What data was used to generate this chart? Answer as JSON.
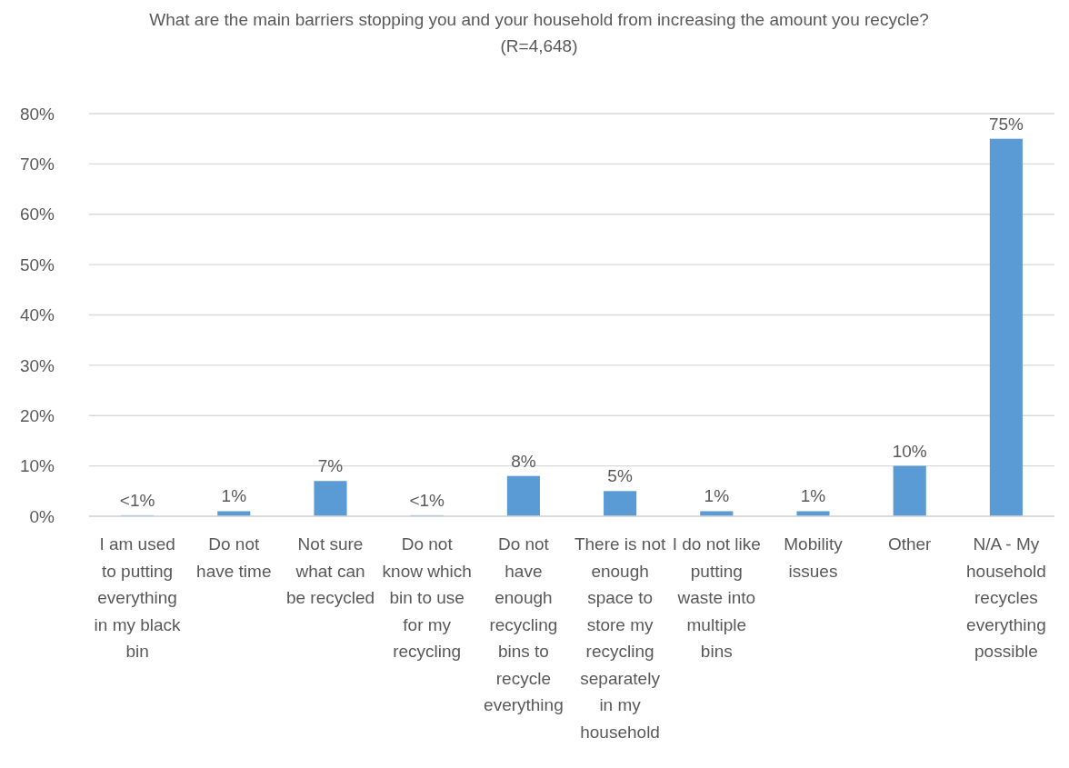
{
  "chart_data": {
    "type": "bar",
    "title": "What are the main barriers stopping you and your household from increasing the amount you recycle?",
    "subtitle": "(R=4,648)",
    "categories": [
      "I am used to putting everything in my black bin",
      "Do not have time",
      "Not sure what can be recycled",
      "Do not know which bin to use for my recycling",
      "Do not have enough recycling bins to recycle everything",
      "There is not enough space to store my recycling separately in my household",
      "I do not like putting waste into multiple bins",
      "Mobility issues",
      "Other",
      "N/A - My household recycles everything possible"
    ],
    "values": [
      0.2,
      1,
      7,
      0.2,
      8,
      5,
      1,
      1,
      10,
      75
    ],
    "value_labels": [
      "<1%",
      "1%",
      "7%",
      "<1%",
      "8%",
      "5%",
      "1%",
      "1%",
      "10%",
      "75%"
    ],
    "color": "#5b9bd5",
    "ylim": [
      0,
      80
    ],
    "yticks": [
      {
        "value": 0,
        "label": "0%"
      },
      {
        "value": 10,
        "label": "10%"
      },
      {
        "value": 20,
        "label": "20%"
      },
      {
        "value": 30,
        "label": "30%"
      },
      {
        "value": 40,
        "label": "40%"
      },
      {
        "value": 50,
        "label": "50%"
      },
      {
        "value": 60,
        "label": "60%"
      },
      {
        "value": 70,
        "label": "70%"
      },
      {
        "value": 80,
        "label": "80%"
      }
    ],
    "grid": "y"
  }
}
